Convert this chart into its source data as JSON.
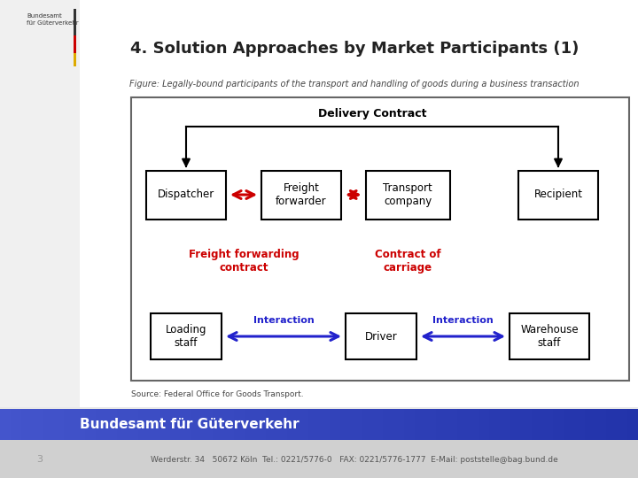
{
  "title": "4. Solution Approaches by Market Participants (1)",
  "subtitle": "Figure: Legally-bound participants of the transport and handling of goods during a business transaction",
  "source": "Source: Federal Office for Goods Transpor t.",
  "footer_text": "Bundesamt für Güterverkehr",
  "footer_detail": "Werderstr. 34   50672 Köln  Tel.: 0221/5776-0   FAX: 0221/5776-1777  E-Mail: poststelle@bag.bund.de",
  "page_num": "3",
  "slide_bg": "#f0f0f0",
  "white_bg": "#ffffff",
  "red_arrow_color": "#cc0000",
  "blue_arrow_color": "#2222cc",
  "black_color": "#000000",
  "contract_label_color": "#cc0000",
  "delivery_contract_label": "Delivery Contract",
  "footer_blue_start": "#5566cc",
  "footer_blue_end": "#2233aa",
  "footer_bottom_bg": "#d0d0d0",
  "logo_bar_black": "#222222",
  "logo_bar_red": "#cc0000",
  "logo_bar_gold": "#ddaa00"
}
